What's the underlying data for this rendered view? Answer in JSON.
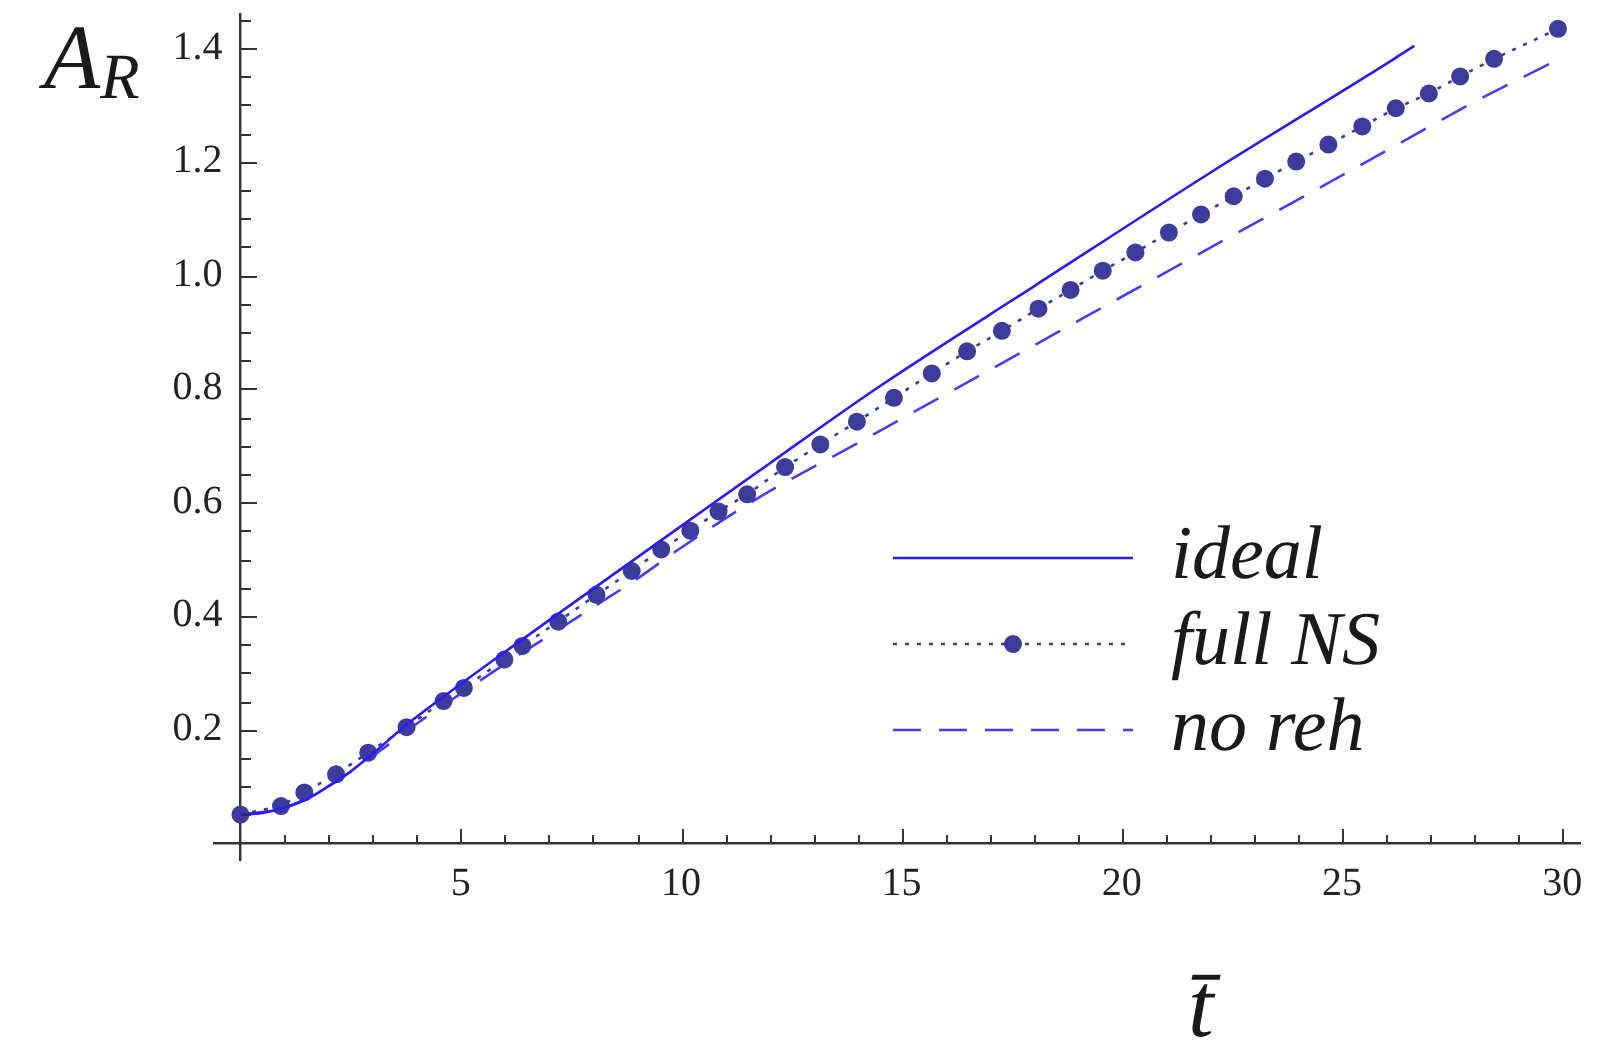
{
  "chart_data": {
    "type": "line",
    "xlabel": "t̄",
    "ylabel": "A$_{R}$",
    "legend": "bottom right",
    "xlim": [
      -0.6,
      30.4
    ],
    "ylim": [
      -0.03,
      1.46
    ],
    "xticks": [
      {
        "value": 1,
        "label": null
      },
      {
        "value": 2,
        "label": null
      },
      {
        "value": 3,
        "label": null
      },
      {
        "value": 4,
        "label": null
      },
      5,
      {
        "value": 6,
        "label": null
      },
      {
        "value": 7,
        "label": null
      },
      {
        "value": 8,
        "label": null
      },
      {
        "value": 9,
        "label": null
      },
      10,
      {
        "value": 11,
        "label": null
      },
      {
        "value": 12,
        "label": null
      },
      {
        "value": 13,
        "label": null
      },
      {
        "value": 14,
        "label": null
      },
      15,
      {
        "value": 16,
        "label": null
      },
      {
        "value": 17,
        "label": null
      },
      {
        "value": 18,
        "label": null
      },
      {
        "value": 19,
        "label": null
      },
      20,
      {
        "value": 21,
        "label": null
      },
      {
        "value": 22,
        "label": null
      },
      {
        "value": 23,
        "label": null
      },
      {
        "value": 24,
        "label": null
      },
      25,
      {
        "value": 26,
        "label": null
      },
      {
        "value": 27,
        "label": null
      },
      {
        "value": 28,
        "label": null
      },
      {
        "value": 29,
        "label": null
      },
      30
    ],
    "yticks": [
      {
        "value": 0.05,
        "label": null
      },
      {
        "value": 0.1,
        "label": null
      },
      {
        "value": 0.15,
        "label": null
      },
      0.2,
      {
        "value": 0.25,
        "label": null
      },
      {
        "value": 0.3,
        "label": null
      },
      {
        "value": 0.35,
        "label": null
      },
      0.4,
      {
        "value": 0.45,
        "label": null
      },
      {
        "value": 0.5,
        "label": null
      },
      {
        "value": 0.55,
        "label": null
      },
      0.6,
      {
        "value": 0.65,
        "label": null
      },
      {
        "value": 0.7,
        "label": null
      },
      {
        "value": 0.75,
        "label": null
      },
      0.8,
      {
        "value": 0.85,
        "label": null
      },
      {
        "value": 0.9,
        "label": null
      },
      {
        "value": 0.95,
        "label": null
      },
      {
        "value": 1,
        "label": "1.0"
      },
      {
        "value": 1.05,
        "label": null
      },
      {
        "value": 1.1,
        "label": null
      },
      {
        "value": 1.15,
        "label": null
      },
      1.2,
      {
        "value": 1.25,
        "label": null
      },
      {
        "value": 1.3,
        "label": null
      },
      {
        "value": 1.35,
        "label": null
      },
      1.4,
      {
        "value": 1.45,
        "label": null
      }
    ],
    "series": [
      {
        "name": "ideal",
        "color": "#2a1aff",
        "line_style": "solid",
        "marker": "none",
        "x": [
          0,
          0.5,
          1,
          1.5,
          2,
          2.5,
          3,
          3.75,
          5,
          7,
          10,
          12,
          14.5,
          18,
          22,
          26.2,
          26.64
        ],
        "values": [
          0.05,
          0.053,
          0.062,
          0.077,
          0.1,
          0.126,
          0.157,
          0.207,
          0.28,
          0.392,
          0.558,
          0.668,
          0.804,
          0.98,
          1.18,
          1.382,
          1.404
        ]
      },
      {
        "name": "full NS",
        "color": "#3c3c9c",
        "line_style": "dotted",
        "marker": "circle",
        "x": [
          0,
          0.92,
          1.45,
          2.17,
          2.9,
          3.77,
          4.61,
          5.07,
          5.99,
          6.4,
          7.21,
          8.08,
          8.88,
          9.55,
          10.21,
          10.85,
          11.5,
          12.36,
          13.16,
          13.99,
          14.83,
          15.69,
          16.49,
          17.28,
          18.11,
          18.84,
          19.57,
          20.31,
          21.07,
          21.8,
          22.54,
          23.25,
          23.96,
          24.69,
          25.46,
          26.22,
          26.97,
          27.68,
          28.45,
          29.9
        ],
        "values": [
          0.05,
          0.065,
          0.089,
          0.121,
          0.159,
          0.204,
          0.25,
          0.273,
          0.323,
          0.347,
          0.39,
          0.437,
          0.479,
          0.517,
          0.55,
          0.584,
          0.614,
          0.662,
          0.702,
          0.742,
          0.784,
          0.827,
          0.866,
          0.902,
          0.941,
          0.974,
          1.008,
          1.04,
          1.075,
          1.107,
          1.139,
          1.17,
          1.2,
          1.23,
          1.262,
          1.294,
          1.32,
          1.35,
          1.381,
          1.434
        ]
      },
      {
        "name": "no reh",
        "color": "#4a3cff",
        "line_style": "dashed",
        "marker": "none",
        "x": [
          0,
          1,
          2,
          3,
          4,
          5,
          6,
          7,
          8,
          9,
          10,
          11.8,
          14,
          16,
          18,
          20,
          22,
          24,
          26,
          28,
          29.7
        ],
        "values": [
          0.05,
          0.062,
          0.1,
          0.153,
          0.21,
          0.263,
          0.315,
          0.365,
          0.415,
          0.465,
          0.52,
          0.61,
          0.704,
          0.79,
          0.876,
          0.962,
          1.048,
          1.133,
          1.219,
          1.305,
          1.372
        ]
      }
    ]
  }
}
